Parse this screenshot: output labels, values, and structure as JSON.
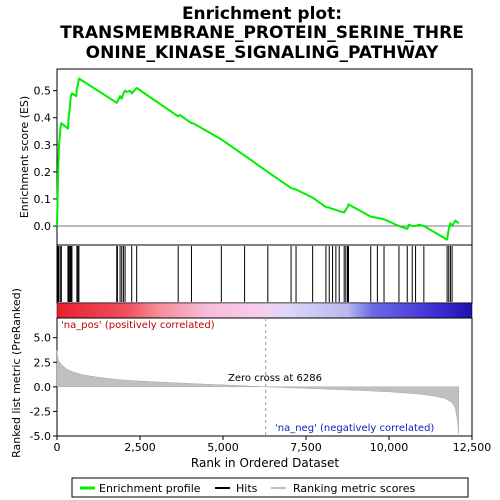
{
  "chart_data": {
    "type": "line",
    "title": "Enrichment plot: TRANSMEMBRANE_PROTEIN_SERINE_THREONINE_KINASE_SIGNALING_PATHWAY",
    "title_lines": [
      "Enrichment plot:",
      "TRANSMEMBRANE_PROTEIN_SERINE_THRE",
      "ONINE_KINASE_SIGNALING_PATHWAY"
    ],
    "xlabel": "Rank in Ordered Dataset",
    "es_panel": {
      "ylabel": "Enrichment score (ES)",
      "ylim": [
        -0.07,
        0.58
      ],
      "yticks": [
        0.0,
        0.1,
        0.2,
        0.3,
        0.4,
        0.5
      ],
      "ytick_labels": [
        "0.0",
        "0.1",
        "0.2",
        "0.3",
        "0.4",
        "0.5"
      ],
      "grid": false
    },
    "metric_panel": {
      "ylabel": "Ranked list metric (PreRanked)",
      "ylim": [
        -5.0,
        7.0
      ],
      "yticks": [
        -5.0,
        -2.5,
        0.0,
        2.5,
        5.0
      ],
      "ytick_labels": [
        "-5.0",
        "-2.5",
        "0.0",
        "2.5",
        "5.0"
      ],
      "annotations": {
        "na_pos": "'na_pos' (positively correlated)",
        "zero_cross": "Zero cross at 6286",
        "na_neg": "'na_neg' (negatively correlated)"
      }
    },
    "xlim": [
      0,
      12500
    ],
    "xticks": [
      0,
      2500,
      5000,
      7500,
      10000,
      12500
    ],
    "xtick_labels": [
      "0",
      "2,500",
      "5,000",
      "7,500",
      "10,000",
      "12,500"
    ],
    "zero_cross": 6286,
    "series": [
      {
        "name": "Enrichment profile",
        "color": "#00ee00",
        "x": [
          0,
          20,
          40,
          60,
          110,
          130,
          330,
          350,
          380,
          400,
          420,
          450,
          580,
          600,
          630,
          660,
          1800,
          1820,
          1900,
          1950,
          2000,
          2050,
          2100,
          2200,
          2250,
          2400,
          3650,
          3700,
          4050,
          4100,
          4950,
          5650,
          6350,
          7050,
          7200,
          7700,
          8100,
          8200,
          8300,
          8400,
          8500,
          8650,
          8700,
          8750,
          8780,
          9450,
          9650,
          9850,
          10300,
          10550,
          10600,
          10700,
          10800,
          10900,
          11050,
          11750,
          11800,
          11850,
          11900,
          12000,
          12100
        ],
        "y": [
          0.0,
          0.12,
          0.22,
          0.3,
          0.37,
          0.38,
          0.36,
          0.4,
          0.43,
          0.46,
          0.48,
          0.49,
          0.48,
          0.51,
          0.52,
          0.545,
          0.455,
          0.46,
          0.48,
          0.47,
          0.49,
          0.5,
          0.495,
          0.5,
          0.49,
          0.51,
          0.405,
          0.41,
          0.38,
          0.38,
          0.32,
          0.26,
          0.2,
          0.14,
          0.135,
          0.105,
          0.07,
          0.068,
          0.063,
          0.06,
          0.055,
          0.05,
          0.06,
          0.07,
          0.08,
          0.035,
          0.03,
          0.025,
          0.0,
          -0.01,
          0.005,
          0.0,
          0.0,
          0.005,
          0.0,
          -0.05,
          -0.01,
          0.01,
          0.0,
          0.02,
          0.01
        ]
      },
      {
        "name": "Hits",
        "color": "#000000",
        "x": [
          20,
          40,
          60,
          110,
          130,
          330,
          350,
          380,
          400,
          420,
          450,
          600,
          630,
          660,
          1800,
          1820,
          1900,
          1950,
          2000,
          2050,
          2250,
          2400,
          3650,
          4050,
          4950,
          5650,
          6350,
          7050,
          7200,
          7700,
          8100,
          8200,
          8300,
          8400,
          8500,
          8650,
          8700,
          8750,
          8780,
          9450,
          9650,
          9850,
          10300,
          10550,
          10700,
          10800,
          11050,
          11750,
          11800,
          11850,
          11900
        ]
      },
      {
        "name": "Ranking metric scores",
        "color": "#c0c0c0",
        "x": [
          0,
          20,
          60,
          150,
          300,
          500,
          800,
          1200,
          1800,
          2500,
          3500,
          4500,
          5500,
          6286,
          7000,
          8000,
          9000,
          10000,
          10800,
          11300,
          11700,
          11900,
          12000,
          12050,
          12100
        ],
        "y": [
          3.7,
          3.0,
          2.6,
          2.2,
          1.8,
          1.5,
          1.2,
          1.0,
          0.75,
          0.58,
          0.42,
          0.27,
          0.13,
          0.0,
          -0.1,
          -0.22,
          -0.35,
          -0.5,
          -0.7,
          -0.9,
          -1.2,
          -1.6,
          -2.2,
          -3.2,
          -4.8
        ]
      }
    ],
    "legend": {
      "placement": "bottom",
      "entries": [
        "Enrichment profile",
        "Hits",
        "Ranking metric scores"
      ]
    }
  }
}
